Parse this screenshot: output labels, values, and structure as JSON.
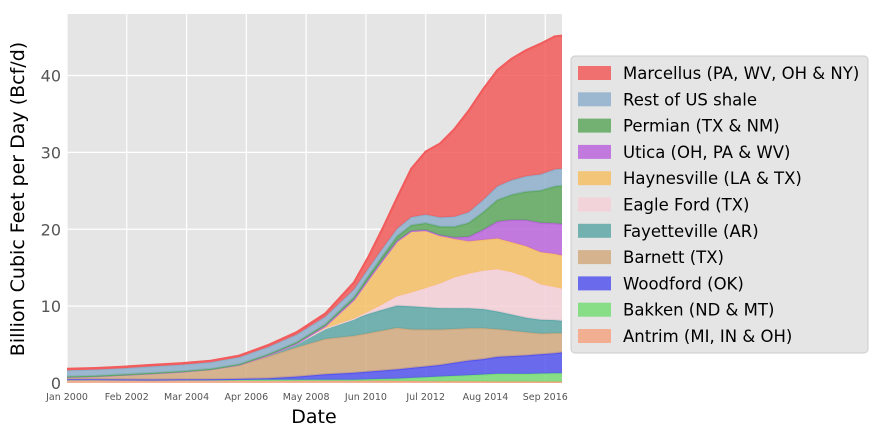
{
  "chart_data": {
    "type": "area",
    "stacked": true,
    "title": "",
    "xlabel": "Date",
    "ylabel": "Billion Cubic Feet per Day (Bcf/d)",
    "x_ticks": [
      {
        "label": "Jan 2000",
        "x": 2000.0
      },
      {
        "label": "Feb 2002",
        "x": 2002.083
      },
      {
        "label": "Mar 2004",
        "x": 2004.167
      },
      {
        "label": "Apr 2006",
        "x": 2006.25
      },
      {
        "label": "May 2008",
        "x": 2008.333
      },
      {
        "label": "Jun 2010",
        "x": 2010.417
      },
      {
        "label": "Jul 2012",
        "x": 2012.5
      },
      {
        "label": "Aug 2014",
        "x": 2014.583
      },
      {
        "label": "Sep 2016",
        "x": 2016.667
      }
    ],
    "xlim": [
      2000.0,
      2017.25
    ],
    "ylim": [
      0,
      48
    ],
    "y_ticks": [
      0,
      10,
      20,
      30,
      40
    ],
    "grid": true,
    "legend_position": "right",
    "x": [
      2000.0,
      2001.0,
      2002.0,
      2003.0,
      2004.0,
      2005.0,
      2006.0,
      2007.0,
      2008.0,
      2009.0,
      2010.0,
      2010.5,
      2011.0,
      2011.5,
      2012.0,
      2012.5,
      2013.0,
      2013.5,
      2014.0,
      2014.5,
      2015.0,
      2015.5,
      2016.0,
      2016.5,
      2017.0,
      2017.25
    ],
    "series": [
      {
        "name": "Antrim (MI, IN & OH)",
        "color": "#f4a582",
        "values": [
          0.45,
          0.45,
          0.43,
          0.42,
          0.42,
          0.4,
          0.38,
          0.36,
          0.35,
          0.33,
          0.3,
          0.3,
          0.28,
          0.27,
          0.26,
          0.25,
          0.24,
          0.23,
          0.22,
          0.21,
          0.2,
          0.2,
          0.19,
          0.18,
          0.18,
          0.18
        ]
      },
      {
        "name": "Bakken (ND & MT)",
        "color": "#77dd77",
        "values": [
          0.02,
          0.02,
          0.02,
          0.02,
          0.03,
          0.03,
          0.05,
          0.06,
          0.08,
          0.1,
          0.13,
          0.18,
          0.25,
          0.3,
          0.4,
          0.5,
          0.6,
          0.7,
          0.8,
          0.9,
          1.0,
          1.0,
          1.0,
          1.05,
          1.1,
          1.1
        ]
      },
      {
        "name": "Woodford (OK)",
        "color": "#5555ee",
        "values": [
          0.02,
          0.02,
          0.02,
          0.02,
          0.03,
          0.05,
          0.1,
          0.2,
          0.4,
          0.7,
          0.9,
          1.0,
          1.1,
          1.2,
          1.3,
          1.4,
          1.5,
          1.7,
          1.9,
          2.0,
          2.2,
          2.3,
          2.4,
          2.5,
          2.6,
          2.7
        ]
      },
      {
        "name": "Barnett (TX)",
        "color": "#d2aa80",
        "values": [
          0.3,
          0.4,
          0.6,
          0.8,
          1.0,
          1.3,
          1.8,
          2.8,
          3.8,
          4.6,
          4.8,
          5.0,
          5.2,
          5.4,
          5.0,
          4.8,
          4.6,
          4.4,
          4.2,
          4.0,
          3.6,
          3.3,
          3.0,
          2.7,
          2.6,
          2.5
        ]
      },
      {
        "name": "Fayetteville (AR)",
        "color": "#5fa8a8",
        "values": [
          0.0,
          0.0,
          0.0,
          0.0,
          0.0,
          0.01,
          0.05,
          0.2,
          0.5,
          1.4,
          2.2,
          2.5,
          2.7,
          2.9,
          3.0,
          2.9,
          2.8,
          2.7,
          2.6,
          2.5,
          2.3,
          2.1,
          1.9,
          1.8,
          1.7,
          1.6
        ]
      },
      {
        "name": "Eagle Ford (TX)",
        "color": "#f5d0d8",
        "values": [
          0.0,
          0.0,
          0.0,
          0.0,
          0.0,
          0.0,
          0.0,
          0.0,
          0.0,
          0.0,
          0.05,
          0.3,
          0.7,
          1.2,
          1.8,
          2.5,
          3.2,
          4.0,
          4.5,
          5.0,
          5.5,
          5.5,
          5.3,
          4.6,
          4.3,
          4.2
        ]
      },
      {
        "name": "Haynesville (LA & TX)",
        "color": "#f5bf66",
        "values": [
          0.0,
          0.0,
          0.0,
          0.0,
          0.0,
          0.0,
          0.0,
          0.0,
          0.02,
          0.3,
          2.5,
          4.2,
          5.8,
          7.2,
          8.0,
          7.5,
          6.2,
          5.0,
          4.2,
          4.0,
          4.0,
          3.9,
          4.0,
          4.2,
          4.3,
          4.3
        ]
      },
      {
        "name": "Utica (OH, PA & WV)",
        "color": "#bb66dd",
        "values": [
          0.0,
          0.0,
          0.0,
          0.0,
          0.0,
          0.0,
          0.0,
          0.0,
          0.0,
          0.0,
          0.0,
          0.0,
          0.0,
          0.0,
          0.02,
          0.05,
          0.1,
          0.2,
          0.6,
          1.3,
          2.2,
          2.9,
          3.4,
          3.8,
          4.0,
          4.1
        ]
      },
      {
        "name": "Permian (TX & NM)",
        "color": "#5ea85e",
        "values": [
          0.05,
          0.05,
          0.05,
          0.05,
          0.05,
          0.05,
          0.07,
          0.1,
          0.15,
          0.2,
          0.3,
          0.4,
          0.5,
          0.6,
          0.75,
          0.9,
          1.1,
          1.4,
          1.8,
          2.3,
          2.8,
          3.3,
          3.7,
          4.2,
          4.8,
          5.0
        ]
      },
      {
        "name": "Rest of US shale",
        "color": "#8fb0cc",
        "values": [
          0.8,
          0.8,
          0.8,
          0.85,
          0.85,
          0.85,
          0.9,
          0.95,
          1.0,
          1.0,
          1.0,
          1.0,
          1.0,
          1.0,
          1.05,
          1.1,
          1.2,
          1.3,
          1.4,
          1.6,
          1.8,
          1.9,
          2.0,
          2.1,
          2.2,
          2.2
        ]
      },
      {
        "name": "Marcellus (PA, WV, OH & NY)",
        "color": "#f25c5c",
        "values": [
          0.2,
          0.2,
          0.2,
          0.2,
          0.2,
          0.2,
          0.2,
          0.25,
          0.3,
          0.4,
          0.9,
          1.5,
          2.6,
          4.0,
          6.3,
          8.2,
          9.6,
          11.4,
          13.2,
          14.4,
          15.1,
          15.8,
          16.4,
          17.0,
          17.3,
          17.3
        ]
      }
    ]
  }
}
